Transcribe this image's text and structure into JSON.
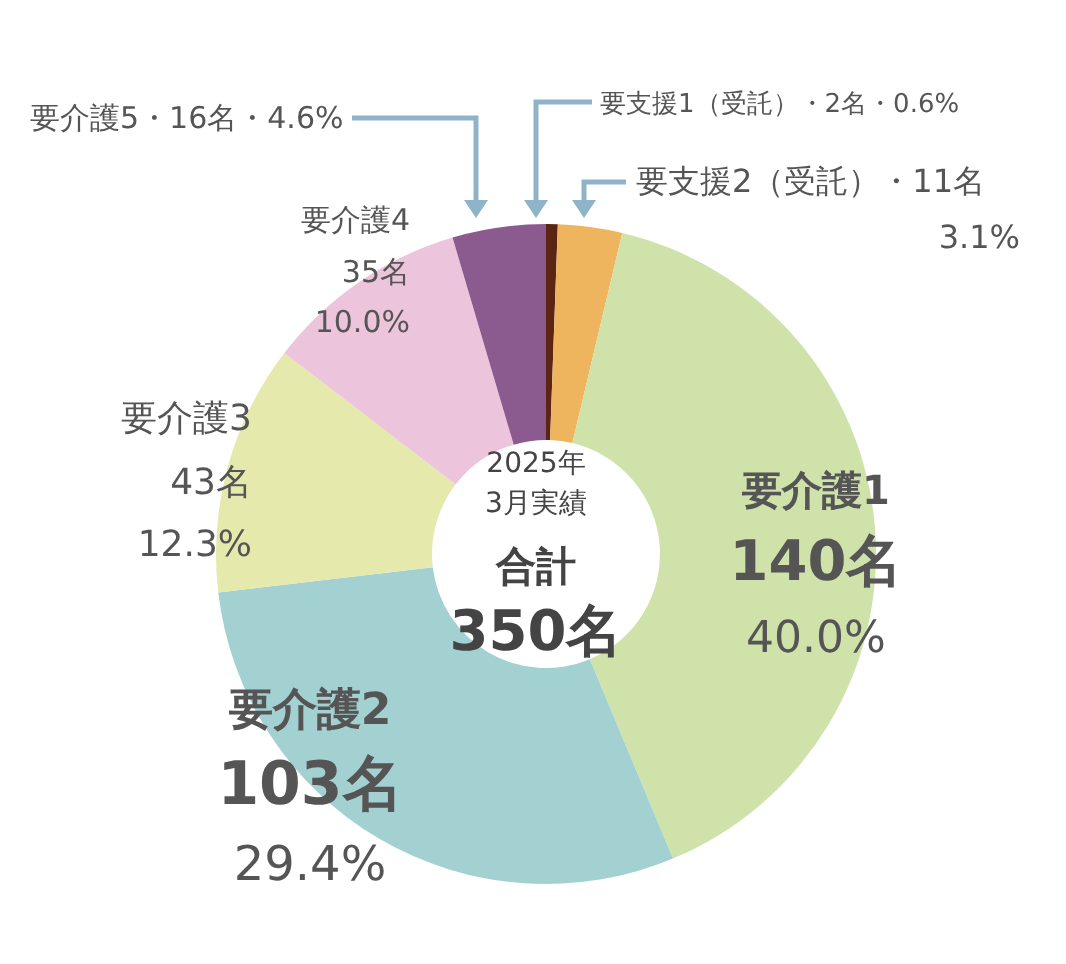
{
  "chart_data": {
    "type": "donut",
    "categories": [
      "要支援1（受託）",
      "要支援2（受託）",
      "要介護1",
      "要介護2",
      "要介護3",
      "要介護4",
      "要介護5"
    ],
    "values": [
      2,
      11,
      140,
      103,
      43,
      35,
      16
    ],
    "value_labels": [
      "・2名・0.6%",
      "・11名\n3.1%",
      "\n140名\n40.0%",
      "\n103名\n29.4%",
      "\n43名\n12.3%",
      "\n35名\n10.0%",
      "・16名・4.6%"
    ],
    "colors": [
      "#5c2412",
      "#eeb55e",
      "#cfe2aa",
      "#a3d1d1",
      "#e6e9ac",
      "#ecc4dc",
      "#8b5b8f"
    ],
    "annotations": [
      "2025年\n3月実績",
      "合計\n350名"
    ]
  }
}
